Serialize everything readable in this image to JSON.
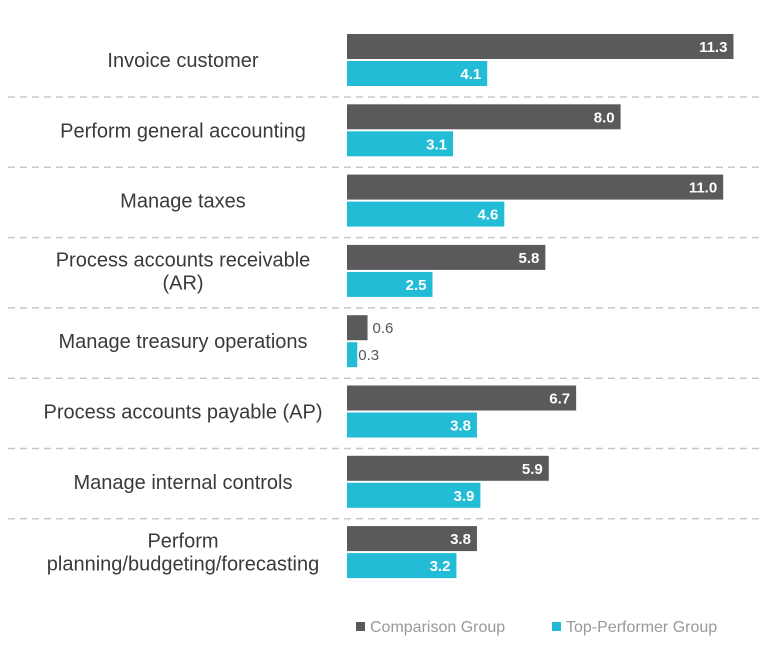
{
  "chart_data": {
    "type": "bar",
    "orientation": "horizontal",
    "categories": [
      [
        "Invoice customer"
      ],
      [
        "Perform general accounting"
      ],
      [
        "Manage taxes"
      ],
      [
        "Process accounts receivable",
        "(AR)"
      ],
      [
        "Manage treasury operations"
      ],
      [
        "Process accounts payable (AP)"
      ],
      [
        "Manage internal controls"
      ],
      [
        "Perform",
        "planning/budgeting/forecasting"
      ]
    ],
    "series": [
      {
        "name": "Comparison Group",
        "color": "#5a5a5d",
        "values": [
          11.3,
          8.0,
          11.0,
          5.8,
          0.6,
          6.7,
          5.9,
          3.8
        ]
      },
      {
        "name": "Top-Performer Group",
        "color": "#22bcd6",
        "values": [
          4.1,
          3.1,
          4.6,
          2.5,
          0.3,
          3.8,
          3.9,
          3.2
        ]
      }
    ],
    "xlim": [
      0,
      11.5
    ],
    "grid": false,
    "row_separators": "dashed",
    "legend": "bottom-right",
    "title": "",
    "xlabel": "",
    "ylabel": ""
  }
}
